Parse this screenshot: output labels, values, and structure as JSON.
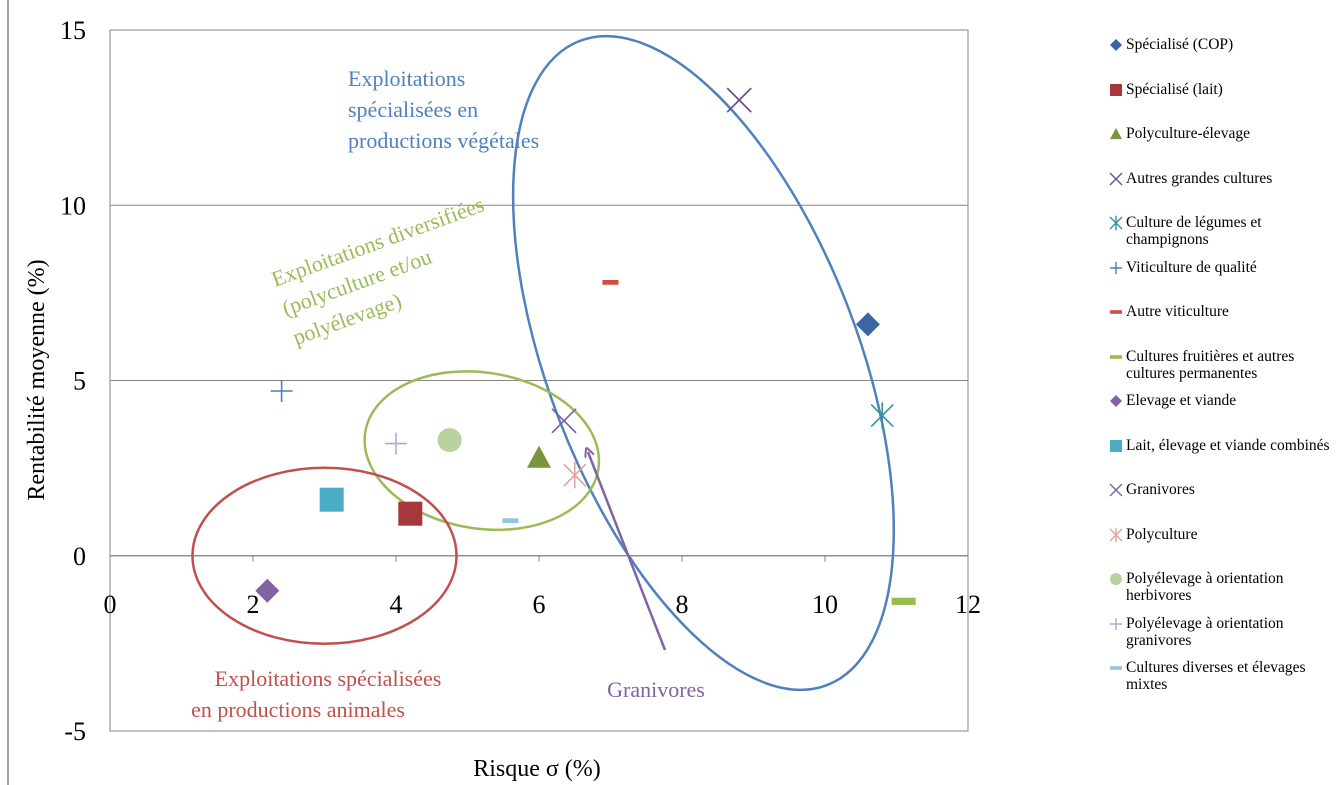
{
  "chart_data": {
    "type": "scatter",
    "title": "",
    "xlabel": "Risque σ (%)",
    "ylabel": "Rentabilité moyenne (%)",
    "xlim": [
      0,
      12
    ],
    "ylim": [
      -5,
      15
    ],
    "xticks": [
      "0",
      "2",
      "4",
      "6",
      "8",
      "10",
      "12"
    ],
    "yticks": [
      "-5",
      "0",
      "5",
      "10",
      "15"
    ],
    "grid": "horizontal",
    "legend_position": "right",
    "series": [
      {
        "name": "Spécialisé (COP)",
        "x": 10.6,
        "y": 6.6,
        "marker": "diamond",
        "color": "#3a67a3"
      },
      {
        "name": "Spécialisé (lait)",
        "x": 4.2,
        "y": 1.2,
        "marker": "square",
        "color": "#a6383a"
      },
      {
        "name": "Polyculture-élevage",
        "x": 6.0,
        "y": 2.8,
        "marker": "triangle",
        "color": "#79963c"
      },
      {
        "name": "Autres grandes cultures",
        "x": 8.8,
        "y": 13.0,
        "marker": "x",
        "color": "#6d4f8e"
      },
      {
        "name": "Culture de légumes et champignons",
        "x": 10.8,
        "y": 4.0,
        "marker": "asterisk",
        "color": "#3590a0"
      },
      {
        "name": "Viticulture de qualité",
        "x": 2.4,
        "y": 4.7,
        "marker": "plus",
        "color": "#4a7ec3"
      },
      {
        "name": "Autre viticulture",
        "x": 7.0,
        "y": 7.8,
        "marker": "dash",
        "color": "#d24b45"
      },
      {
        "name": "Cultures fruitières et autres cultures permanentes",
        "x": 11.1,
        "y": -1.3,
        "marker": "dash",
        "color": "#9bbb4f"
      },
      {
        "name": "Elevage et viande",
        "x": 2.2,
        "y": -1.0,
        "marker": "diamond",
        "color": "#8064a2"
      },
      {
        "name": "Lait, élevage et viande combinés",
        "x": 3.1,
        "y": 1.6,
        "marker": "square",
        "color": "#4bacc6"
      },
      {
        "name": "Granivores",
        "x": 6.35,
        "y": 3.85,
        "marker": "x",
        "color": "#7b63a8"
      },
      {
        "name": "Polyculture",
        "x": 6.5,
        "y": 2.3,
        "marker": "asterisk",
        "color": "#e0a39e"
      },
      {
        "name": "Polyélevage à orientation herbivores",
        "x": 4.75,
        "y": 3.3,
        "marker": "circle",
        "color": "#b8d19f"
      },
      {
        "name": "Polyélevage à orientation granivores",
        "x": 4.0,
        "y": 3.2,
        "marker": "plus",
        "color": "#b4a7cf"
      },
      {
        "name": "Cultures diverses et élevages mixtes",
        "x": 5.6,
        "y": 1.0,
        "marker": "dash",
        "color": "#92c5de"
      }
    ],
    "annotations": [
      {
        "lines": [
          "Exploitations",
          "spécialisées en",
          "productions végétales"
        ],
        "color": "#4f81bd"
      },
      {
        "lines": [
          "Exploitations diversifiées",
          "(polyculture et/ou",
          "polyélevage)"
        ],
        "color": "#9bbb59"
      },
      {
        "lines": [
          "Exploitations spécialisées",
          "en productions animales"
        ],
        "color": "#c0504d"
      },
      {
        "lines": [
          "Granivores"
        ],
        "color": "#8064a2"
      }
    ]
  }
}
